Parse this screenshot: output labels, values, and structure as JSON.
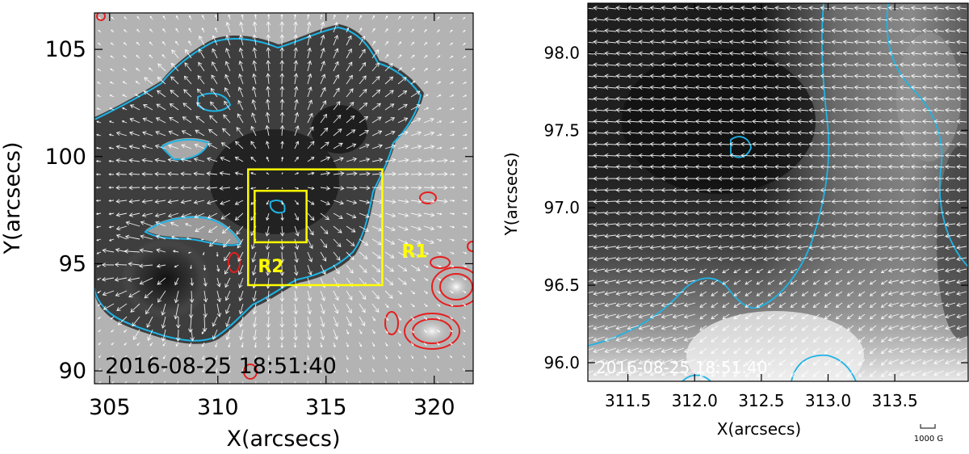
{
  "left_panel": {
    "timestamp": "2016-08-25 18:51:40",
    "xlabel": "X(arcsecs)",
    "ylabel": "Y(arcsecs)",
    "xlim": [
      304.3,
      321.8
    ],
    "ylim": [
      89.4,
      106.7
    ],
    "xticks": [
      "305",
      "310",
      "315",
      "320"
    ],
    "yticks": [
      "90",
      "95",
      "100",
      "105"
    ],
    "regions": [
      {
        "label": "R1",
        "x": [
          311.4,
          317.6
        ],
        "y": [
          94.0,
          99.4
        ]
      },
      {
        "label": "R2",
        "x": [
          311.7,
          314.1
        ],
        "y": [
          96.0,
          98.4
        ]
      }
    ],
    "colors": {
      "contour_neg": "#1EB4E6",
      "contour_pos": "#E61E1E",
      "region_box": "#FFFF00",
      "arrows": "#FFFFFF"
    }
  },
  "right_panel": {
    "timestamp": "2016-08-25 18:51:40",
    "xlabel": "X(arcsecs)",
    "ylabel": "Y(arcsecs)",
    "xlim": [
      311.2,
      314.05
    ],
    "ylim": [
      95.88,
      98.32
    ],
    "xticks": [
      "311.5",
      "312.0",
      "312.5",
      "313.0",
      "313.5"
    ],
    "yticks": [
      "96.0",
      "96.5",
      "97.0",
      "97.5",
      "98.0"
    ],
    "scale_label": "1000 G",
    "colors": {
      "contour": "#1EB4E6",
      "arrows": "#FFFFFF"
    }
  }
}
